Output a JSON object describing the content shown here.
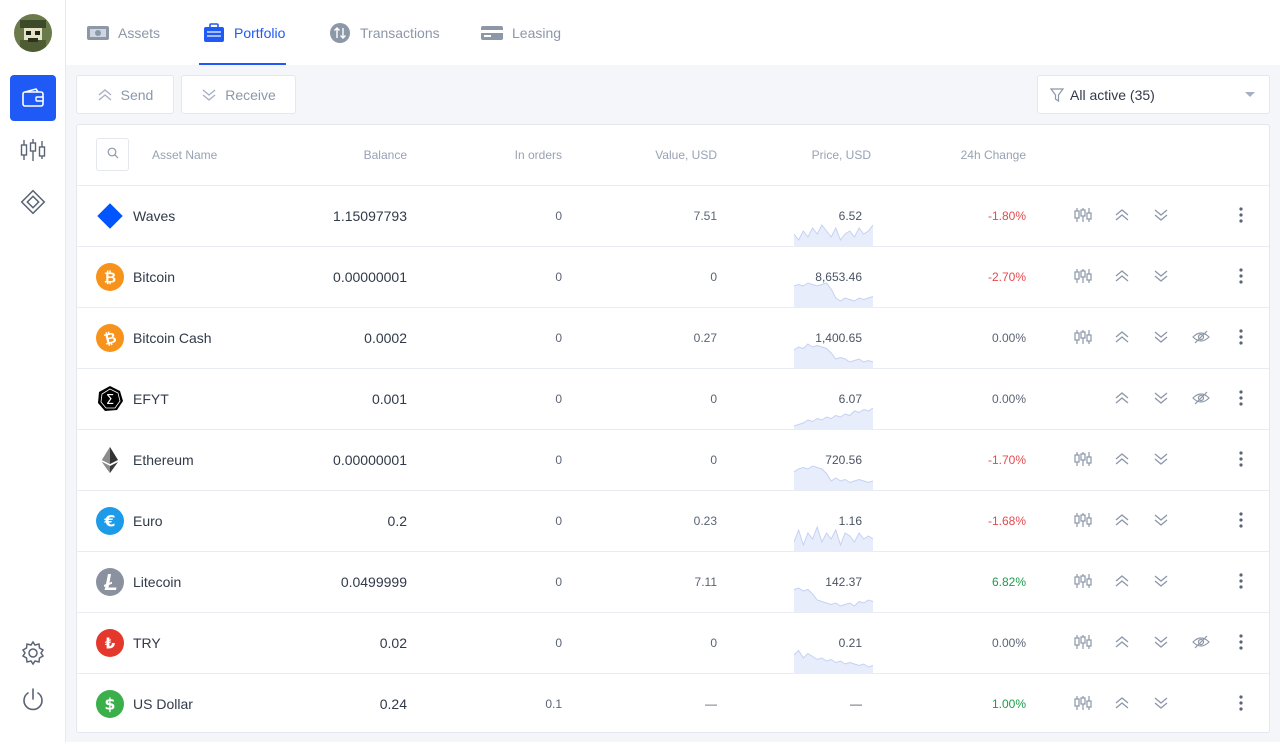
{
  "nav": {
    "tabs": [
      {
        "label": "Assets",
        "icon": "assets-icon",
        "active": false
      },
      {
        "label": "Portfolio",
        "icon": "briefcase-icon",
        "active": true
      },
      {
        "label": "Transactions",
        "icon": "transactions-icon",
        "active": false
      },
      {
        "label": "Leasing",
        "icon": "card-icon",
        "active": false
      }
    ]
  },
  "rail": {
    "items": [
      "wallet-icon",
      "candles-icon",
      "dex-icon",
      "settings-icon",
      "power-icon"
    ],
    "accent": "#1f5af6"
  },
  "toolbar": {
    "send_label": "Send",
    "receive_label": "Receive",
    "filter_label": "All active (35)"
  },
  "table": {
    "headers": {
      "name": "Asset Name",
      "balance": "Balance",
      "in_orders": "In orders",
      "value": "Value, USD",
      "price": "Price, USD",
      "change": "24h Change"
    },
    "rows": [
      {
        "name": "Waves",
        "balance": "1.15097793",
        "in_orders": "0",
        "value": "7.51",
        "price": "6.52",
        "change": "-1.80%",
        "trend": "down",
        "icon": "waves-icon",
        "chart": true,
        "hide": false,
        "spark": [
          0.4,
          0.2,
          0.5,
          0.3,
          0.6,
          0.4,
          0.7,
          0.5,
          0.3,
          0.6,
          0.2,
          0.4,
          0.5,
          0.3,
          0.6,
          0.4,
          0.5,
          0.7
        ]
      },
      {
        "name": "Bitcoin",
        "balance": "0.00000001",
        "in_orders": "0",
        "value": "0",
        "price": "8,653.46",
        "change": "-2.70%",
        "trend": "down",
        "icon": "bitcoin-icon",
        "chart": true,
        "hide": false,
        "spark": [
          0.7,
          0.75,
          0.7,
          0.8,
          0.75,
          0.7,
          0.75,
          0.8,
          0.6,
          0.3,
          0.2,
          0.3,
          0.25,
          0.2,
          0.3,
          0.25,
          0.3,
          0.35
        ]
      },
      {
        "name": "Bitcoin Cash",
        "balance": "0.0002",
        "in_orders": "0",
        "value": "0.27",
        "price": "1,400.65",
        "change": "0.00%",
        "trend": "flat",
        "icon": "bitcoin-cash-icon",
        "chart": true,
        "hide": true,
        "spark": [
          0.6,
          0.7,
          0.65,
          0.8,
          0.7,
          0.75,
          0.7,
          0.65,
          0.5,
          0.3,
          0.35,
          0.3,
          0.2,
          0.25,
          0.3,
          0.2,
          0.25,
          0.2
        ]
      },
      {
        "name": "EFYT",
        "balance": "0.001",
        "in_orders": "0",
        "value": "0",
        "price": "6.07",
        "change": "0.00%",
        "trend": "flat",
        "icon": "efyt-icon",
        "chart": false,
        "hide": true,
        "spark": [
          0.1,
          0.15,
          0.2,
          0.3,
          0.25,
          0.35,
          0.3,
          0.4,
          0.35,
          0.45,
          0.4,
          0.5,
          0.45,
          0.6,
          0.55,
          0.65,
          0.6,
          0.7
        ]
      },
      {
        "name": "Ethereum",
        "balance": "0.00000001",
        "in_orders": "0",
        "value": "0",
        "price": "720.56",
        "change": "-1.70%",
        "trend": "down",
        "icon": "ethereum-icon",
        "chart": true,
        "hide": false,
        "spark": [
          0.6,
          0.7,
          0.75,
          0.7,
          0.8,
          0.75,
          0.7,
          0.55,
          0.3,
          0.4,
          0.3,
          0.35,
          0.25,
          0.3,
          0.35,
          0.3,
          0.25,
          0.3
        ]
      },
      {
        "name": "Euro",
        "balance": "0.2",
        "in_orders": "0",
        "value": "0.23",
        "price": "1.16",
        "change": "-1.68%",
        "trend": "down",
        "icon": "euro-icon",
        "chart": true,
        "hide": false,
        "spark": [
          0.3,
          0.7,
          0.2,
          0.6,
          0.4,
          0.8,
          0.3,
          0.6,
          0.4,
          0.7,
          0.2,
          0.6,
          0.5,
          0.3,
          0.6,
          0.4,
          0.5,
          0.4
        ]
      },
      {
        "name": "Litecoin",
        "balance": "0.0499999",
        "in_orders": "0",
        "value": "7.11",
        "price": "142.37",
        "change": "6.82%",
        "trend": "up",
        "icon": "litecoin-icon",
        "chart": true,
        "hide": false,
        "spark": [
          0.75,
          0.8,
          0.7,
          0.75,
          0.6,
          0.4,
          0.35,
          0.3,
          0.25,
          0.3,
          0.2,
          0.25,
          0.3,
          0.2,
          0.35,
          0.3,
          0.4,
          0.35
        ]
      },
      {
        "name": "TRY",
        "balance": "0.02",
        "in_orders": "0",
        "value": "0",
        "price": "0.21",
        "change": "0.00%",
        "trend": "flat",
        "icon": "try-icon",
        "chart": true,
        "hide": true,
        "spark": [
          0.6,
          0.75,
          0.5,
          0.65,
          0.55,
          0.45,
          0.5,
          0.4,
          0.45,
          0.35,
          0.4,
          0.3,
          0.35,
          0.3,
          0.25,
          0.3,
          0.2,
          0.25
        ]
      },
      {
        "name": "US Dollar",
        "balance": "0.24",
        "in_orders": "0.1",
        "value": "—",
        "price": "—",
        "change": "1.00%",
        "trend": "up",
        "icon": "dollar-icon",
        "chart": true,
        "hide": false,
        "spark": []
      }
    ]
  },
  "colors": {
    "negative": "#e5494d",
    "positive": "#1d9b4b",
    "neutral": "#5a6474",
    "spark_fill": "#e8edfb",
    "spark_line": "#c5d1f4"
  }
}
